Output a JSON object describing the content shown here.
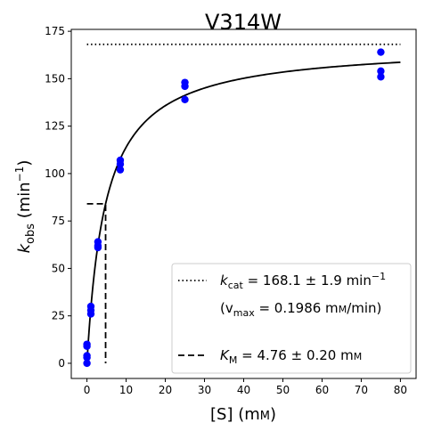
{
  "chart_data": {
    "type": "scatter",
    "title": "V314W",
    "xlabel": {
      "main": "[S] (m",
      "unit": "M",
      "close": ")"
    },
    "ylabel": {
      "main": "k",
      "sub": "obs",
      "rest": " (min",
      "sup": "−1",
      "close": ")"
    },
    "xlim": [
      -4,
      84
    ],
    "ylim": [
      -8,
      176
    ],
    "xticks": [
      0,
      10,
      20,
      30,
      40,
      50,
      60,
      70,
      80
    ],
    "yticks": [
      0,
      25,
      50,
      75,
      100,
      125,
      150,
      175
    ],
    "grid": false,
    "legend_position": "bottom-right",
    "points_color": "#0000ff",
    "line_color": "#000000",
    "points": [
      {
        "x": 0,
        "y": 0
      },
      {
        "x": 0,
        "y": 3
      },
      {
        "x": 0,
        "y": 4
      },
      {
        "x": 0,
        "y": 9
      },
      {
        "x": 0,
        "y": 10
      },
      {
        "x": 1,
        "y": 26
      },
      {
        "x": 1,
        "y": 28
      },
      {
        "x": 1,
        "y": 30
      },
      {
        "x": 2.8,
        "y": 61
      },
      {
        "x": 2.8,
        "y": 62
      },
      {
        "x": 2.8,
        "y": 64
      },
      {
        "x": 8.5,
        "y": 102
      },
      {
        "x": 8.5,
        "y": 105
      },
      {
        "x": 8.5,
        "y": 107
      },
      {
        "x": 25,
        "y": 139
      },
      {
        "x": 25,
        "y": 146
      },
      {
        "x": 25,
        "y": 148
      },
      {
        "x": 75,
        "y": 151
      },
      {
        "x": 75,
        "y": 154
      },
      {
        "x": 75,
        "y": 164
      }
    ],
    "fit": {
      "model": "michaelis-menten",
      "kcat": 168.1,
      "km": 4.76,
      "x_range": [
        0,
        80
      ]
    },
    "kcat_line": {
      "y": 168.1,
      "x_range": [
        0,
        80
      ],
      "style": "dotted"
    },
    "km_line": {
      "x": 4.76,
      "y": 84.05,
      "style": "dashed"
    },
    "legend": {
      "kcat": {
        "prefix": "k",
        "sub": "cat",
        "text": " = 168.1 ± 1.9 min",
        "sup": "−1"
      },
      "vmax": {
        "open": "(v",
        "sub": "max",
        "text": " = 0.1986 m",
        "unit": "M",
        "close": "/min)"
      },
      "km": {
        "prefix": "K",
        "sub": "M",
        "text": " = 4.76 ± 0.20 m",
        "unit": "M"
      }
    }
  }
}
